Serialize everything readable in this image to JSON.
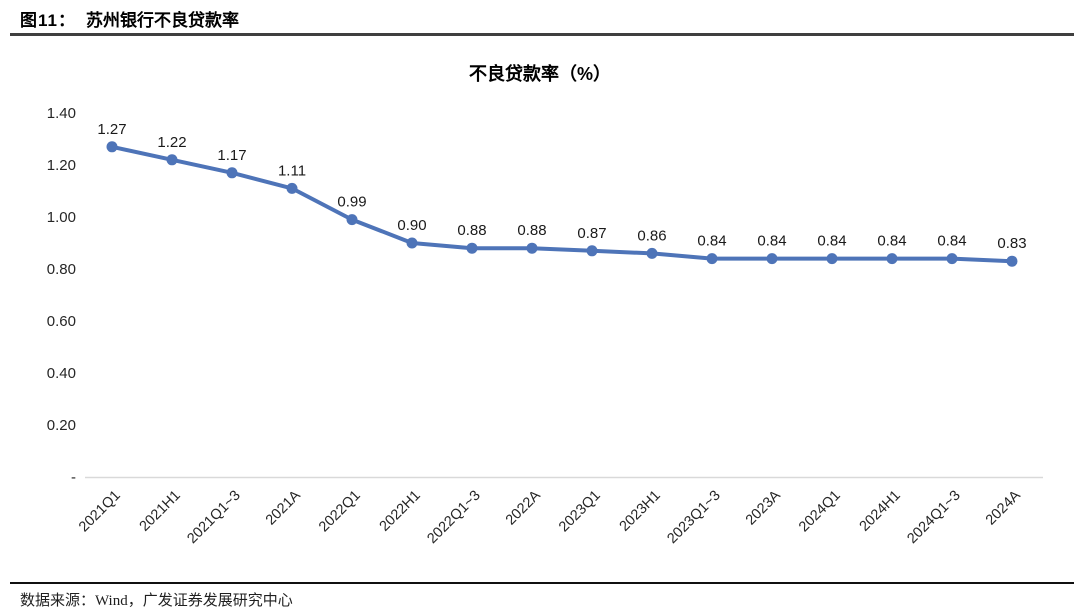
{
  "header": {
    "figure_label": "图11：",
    "figure_title": "苏州银行不良贷款率"
  },
  "chart_data": {
    "type": "line",
    "title": "不良贷款率（%）",
    "categories": [
      "2021Q1",
      "2021H1",
      "2021Q1~3",
      "2021A",
      "2022Q1",
      "2022H1",
      "2022Q1~3",
      "2022A",
      "2023Q1",
      "2023H1",
      "2023Q1~3",
      "2023A",
      "2024Q1",
      "2024H1",
      "2024Q1~3",
      "2024A"
    ],
    "series": [
      {
        "name": "不良贷款率",
        "values": [
          1.27,
          1.22,
          1.17,
          1.11,
          0.99,
          0.9,
          0.88,
          0.88,
          0.87,
          0.86,
          0.84,
          0.84,
          0.84,
          0.84,
          0.84,
          0.83
        ]
      }
    ],
    "xlabel": "",
    "ylabel": "",
    "ylim": [
      0,
      1.4
    ],
    "ytick_step": 0.2,
    "ytick_labels": [
      "-",
      "0.20",
      "0.40",
      "0.60",
      "0.80",
      "1.00",
      "1.20",
      "1.40"
    ],
    "data_labels": true,
    "grid": false,
    "legend": "none",
    "line_color": "#4E74B8",
    "marker": "circle",
    "axis_color": "#d9d9d9",
    "label_color": "#1a1a1a"
  },
  "footer": {
    "source": "数据来源：Wind，广发证券发展研究中心"
  }
}
